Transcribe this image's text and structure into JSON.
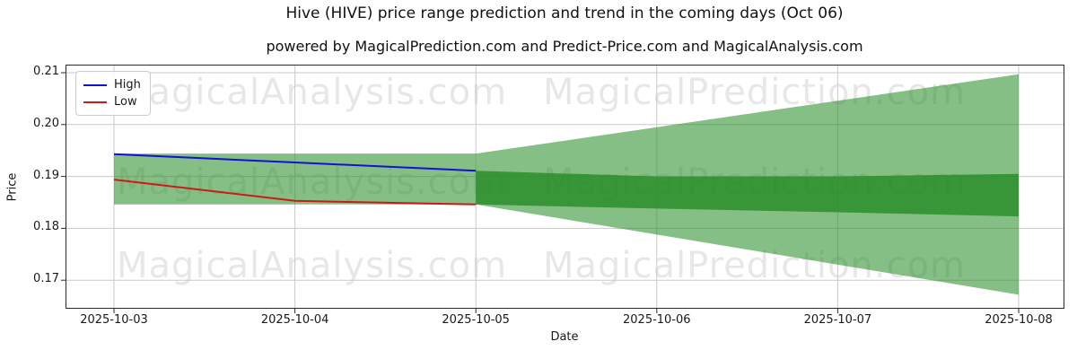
{
  "title": "Hive (HIVE) price range prediction and trend in the coming days (Oct 06)",
  "subtitle": "powered by MagicalPrediction.com and Predict-Price.com and MagicalAnalysis.com",
  "watermarks": {
    "left_text": "MagicalAnalysis.com",
    "right_text": "MagicalPrediction.com"
  },
  "legend": {
    "items": [
      {
        "label": "High",
        "color": "#1212d6"
      },
      {
        "label": "Low",
        "color": "#cc1a1a"
      }
    ]
  },
  "colors": {
    "band_light": "rgba(34,139,34,0.55)",
    "band_dark": "rgba(34,139,34,0.78)",
    "grid": "#c9c9c9",
    "spine": "#2b2b2b"
  },
  "chart_data": {
    "type": "line",
    "title": "Hive (HIVE) price range prediction and trend in the coming days (Oct 06)",
    "subtitle": "powered by MagicalPrediction.com and Predict-Price.com and MagicalAnalysis.com",
    "xlabel": "Date",
    "ylabel": "Price",
    "x_ticks": [
      "2025-10-03",
      "2025-10-04",
      "2025-10-05",
      "2025-10-06",
      "2025-10-07",
      "2025-10-08"
    ],
    "y_ticks": [
      0.21,
      0.2,
      0.19,
      0.18,
      0.17
    ],
    "y_tick_labels": [
      "0.21",
      "0.20",
      "0.19",
      "0.18",
      "0.17"
    ],
    "ylim": [
      0.1643,
      0.2116
    ],
    "grid": true,
    "legend_position": "upper-left",
    "series": [
      {
        "name": "High",
        "x": [
          0,
          1,
          2
        ],
        "values": [
          0.1943,
          0.1927,
          0.1911
        ]
      },
      {
        "name": "Low",
        "x": [
          0,
          1,
          2
        ],
        "values": [
          0.1894,
          0.1853,
          0.1846
        ]
      }
    ],
    "bands": [
      {
        "name": "historical-range",
        "shade": "light",
        "x": [
          0,
          2
        ],
        "top": [
          0.1944,
          0.1944
        ],
        "bottom": [
          0.1846,
          0.1846
        ]
      },
      {
        "name": "forecast-outer-range",
        "shade": "light",
        "x": [
          2,
          3,
          4,
          5
        ],
        "top": [
          0.1944,
          0.1995,
          0.2046,
          0.2097
        ],
        "bottom": [
          0.1846,
          0.1788,
          0.173,
          0.1672
        ]
      },
      {
        "name": "forecast-inner-range",
        "shade": "dark",
        "x": [
          2,
          3,
          4,
          5
        ],
        "top": [
          0.1911,
          0.19,
          0.19,
          0.1905
        ],
        "bottom": [
          0.1846,
          0.1838,
          0.1831,
          0.1823
        ]
      }
    ]
  }
}
